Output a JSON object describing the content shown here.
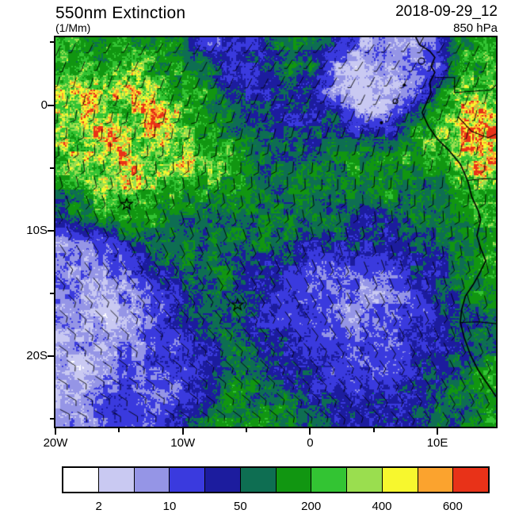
{
  "header": {
    "title": "550nm Extinction",
    "units": "(1/Mm)",
    "datetime": "2018-09-29_12",
    "level": "850 hPa"
  },
  "axes": {
    "lon_min": -20,
    "lon_max": 14.6,
    "lat_min": -25.6,
    "lat_max": 5.4,
    "x_ticks": [
      {
        "label": "20W",
        "lon": -20
      },
      {
        "label": "10W",
        "lon": -10
      },
      {
        "label": "0",
        "lon": 0
      },
      {
        "label": "10E",
        "lon": 10
      }
    ],
    "y_ticks": [
      {
        "label": "0",
        "lat": 0
      },
      {
        "label": "10S",
        "lat": -10
      },
      {
        "label": "20S",
        "lat": -20
      }
    ],
    "x_minor_ticks": [
      -15,
      -5,
      5
    ],
    "y_minor_ticks": [
      5,
      -5,
      -15,
      -25
    ]
  },
  "colorbar": {
    "colors": [
      "#ffffff",
      "#c9c9f2",
      "#9595e6",
      "#3a3ade",
      "#1c1c9e",
      "#0e6e52",
      "#119611",
      "#33c433",
      "#9ade4f",
      "#f7f72e",
      "#fba32e",
      "#e83218"
    ],
    "levels": [
      2,
      5,
      10,
      25,
      50,
      100,
      200,
      300,
      400,
      500,
      600
    ],
    "labels": [
      "2",
      "10",
      "50",
      "200",
      "400",
      "600"
    ],
    "label_boundary_indices": [
      1,
      3,
      5,
      7,
      9,
      11
    ]
  },
  "chart_data": {
    "type": "heatmap",
    "title": "550nm Extinction",
    "units": "1/Mm",
    "valid_time": "2018-09-29_12",
    "pressure_level": "850 hPa",
    "legend_levels": [
      2,
      5,
      10,
      25,
      50,
      100,
      200,
      300,
      400,
      500,
      600
    ],
    "lons": [
      -20,
      -18,
      -16,
      -14,
      -12,
      -10,
      -8,
      -6,
      -4,
      -2,
      0,
      2,
      4,
      6,
      8,
      10,
      12,
      14
    ],
    "lats": [
      5,
      3,
      1,
      -1,
      -3,
      -5,
      -7,
      -9,
      -11,
      -13,
      -15,
      -17,
      -19,
      -21,
      -23,
      -25
    ],
    "extinction_grid": [
      [
        150,
        150,
        150,
        150,
        150,
        75,
        15,
        15,
        35,
        75,
        75,
        35,
        7,
        7,
        7,
        15,
        150,
        150
      ],
      [
        150,
        250,
        150,
        250,
        150,
        150,
        75,
        15,
        35,
        75,
        75,
        7,
        3,
        7,
        7,
        15,
        150,
        150
      ],
      [
        350,
        450,
        250,
        450,
        250,
        150,
        150,
        35,
        35,
        35,
        35,
        7,
        3,
        3,
        7,
        75,
        250,
        250
      ],
      [
        350,
        450,
        350,
        250,
        450,
        250,
        150,
        75,
        35,
        35,
        35,
        75,
        7,
        7,
        75,
        250,
        450,
        550
      ],
      [
        250,
        350,
        450,
        350,
        350,
        250,
        150,
        150,
        75,
        75,
        35,
        75,
        75,
        75,
        150,
        250,
        450,
        600
      ],
      [
        150,
        250,
        350,
        450,
        250,
        350,
        250,
        150,
        75,
        75,
        75,
        75,
        150,
        150,
        150,
        150,
        350,
        500
      ],
      [
        75,
        150,
        250,
        350,
        250,
        150,
        150,
        150,
        75,
        75,
        75,
        75,
        75,
        150,
        75,
        75,
        150,
        250
      ],
      [
        35,
        75,
        150,
        150,
        150,
        75,
        75,
        75,
        75,
        75,
        75,
        75,
        35,
        35,
        75,
        75,
        150,
        150
      ],
      [
        7,
        7,
        15,
        35,
        75,
        75,
        75,
        75,
        75,
        75,
        35,
        35,
        35,
        35,
        35,
        75,
        75,
        150
      ],
      [
        7,
        7,
        7,
        15,
        35,
        75,
        75,
        75,
        35,
        35,
        15,
        15,
        15,
        15,
        35,
        35,
        75,
        150
      ],
      [
        7,
        7,
        7,
        7,
        15,
        35,
        75,
        75,
        35,
        15,
        15,
        7,
        7,
        7,
        15,
        35,
        75,
        150
      ],
      [
        7,
        7,
        3,
        7,
        15,
        35,
        75,
        75,
        35,
        15,
        15,
        15,
        7,
        15,
        15,
        35,
        75,
        75
      ],
      [
        3,
        7,
        7,
        7,
        15,
        15,
        35,
        75,
        35,
        35,
        15,
        15,
        15,
        15,
        15,
        35,
        35,
        75
      ],
      [
        7,
        3,
        7,
        15,
        15,
        15,
        35,
        75,
        75,
        35,
        35,
        15,
        15,
        15,
        35,
        35,
        75,
        150
      ],
      [
        7,
        7,
        15,
        15,
        7,
        15,
        35,
        150,
        75,
        75,
        35,
        35,
        15,
        35,
        35,
        75,
        75,
        150
      ],
      [
        7,
        7,
        15,
        15,
        15,
        35,
        75,
        150,
        150,
        75,
        75,
        35,
        35,
        35,
        35,
        75,
        75,
        150
      ]
    ],
    "wind": {
      "lons": [
        -20,
        -13,
        -6,
        1,
        8,
        14.6
      ],
      "lats": [
        5.4,
        -1,
        -7,
        -13,
        -19,
        -25.6
      ],
      "direction_from_deg": [
        [
          205,
          210,
          215,
          220,
          215,
          205
        ],
        [
          185,
          190,
          195,
          200,
          200,
          190
        ],
        [
          160,
          165,
          170,
          175,
          180,
          185
        ],
        [
          140,
          145,
          150,
          155,
          160,
          170
        ],
        [
          125,
          130,
          135,
          140,
          150,
          160
        ],
        [
          115,
          120,
          125,
          130,
          140,
          155
        ]
      ],
      "speed_kt": [
        [
          5,
          5,
          5,
          5,
          5,
          5
        ],
        [
          8,
          8,
          8,
          5,
          5,
          5
        ],
        [
          10,
          10,
          10,
          8,
          8,
          8
        ],
        [
          10,
          10,
          10,
          10,
          10,
          8
        ],
        [
          12,
          12,
          10,
          10,
          10,
          10
        ],
        [
          12,
          12,
          12,
          10,
          10,
          10
        ]
      ]
    },
    "markers": [
      {
        "name": "star",
        "lon": -14.4,
        "lat": -7.9
      },
      {
        "name": "star",
        "lon": -5.7,
        "lat": -15.9
      }
    ]
  },
  "map": {
    "coastline": [
      [
        8.3,
        5.4
      ],
      [
        8.6,
        4.8
      ],
      [
        9.4,
        4.3
      ],
      [
        9.8,
        3.8
      ],
      [
        9.5,
        3.1
      ],
      [
        9.8,
        2.6
      ],
      [
        9.4,
        1.8
      ],
      [
        9.5,
        1.0
      ],
      [
        9.2,
        0.3
      ],
      [
        8.8,
        -0.6
      ],
      [
        9.3,
        -1.7
      ],
      [
        10.0,
        -2.7
      ],
      [
        10.9,
        -3.6
      ],
      [
        11.8,
        -4.7
      ],
      [
        12.2,
        -5.6
      ],
      [
        12.4,
        -6.1
      ],
      [
        12.7,
        -7.3
      ],
      [
        13.2,
        -8.4
      ],
      [
        13.4,
        -9.1
      ],
      [
        13.1,
        -10.4
      ],
      [
        13.4,
        -11.4
      ],
      [
        13.8,
        -12.4
      ],
      [
        13.3,
        -13.4
      ],
      [
        12.8,
        -14.3
      ],
      [
        12.2,
        -15.2
      ],
      [
        11.9,
        -16.3
      ],
      [
        11.8,
        -17.3
      ],
      [
        12.1,
        -18.5
      ],
      [
        12.6,
        -19.9
      ],
      [
        13.2,
        -21.1
      ],
      [
        14.0,
        -22.3
      ],
      [
        14.6,
        -23.2
      ]
    ],
    "borders": [
      [
        [
          8.6,
          4.8
        ],
        [
          8.9,
          5.4
        ]
      ],
      [
        [
          9.8,
          2.2
        ],
        [
          11.35,
          2.2
        ],
        [
          11.35,
          1.0
        ],
        [
          14.2,
          1.2
        ],
        [
          14.6,
          1.6
        ]
      ],
      [
        [
          11.6,
          -0.9
        ],
        [
          12.7,
          -2.1
        ],
        [
          14.0,
          -2.6
        ],
        [
          14.6,
          -2.3
        ]
      ],
      [
        [
          12.4,
          -6.0
        ],
        [
          13.6,
          -5.85
        ],
        [
          14.6,
          -5.9
        ]
      ],
      [
        [
          11.8,
          -17.3
        ],
        [
          13.2,
          -17.25
        ],
        [
          14.6,
          -17.4
        ]
      ]
    ],
    "islands": [
      {
        "lon": 8.75,
        "lat": 3.5,
        "r": 4
      },
      {
        "lon": 7.4,
        "lat": 1.6,
        "r": 2
      },
      {
        "lon": 6.7,
        "lat": 0.3,
        "r": 3
      },
      {
        "lon": 5.6,
        "lat": -1.4,
        "r": 2
      }
    ]
  }
}
